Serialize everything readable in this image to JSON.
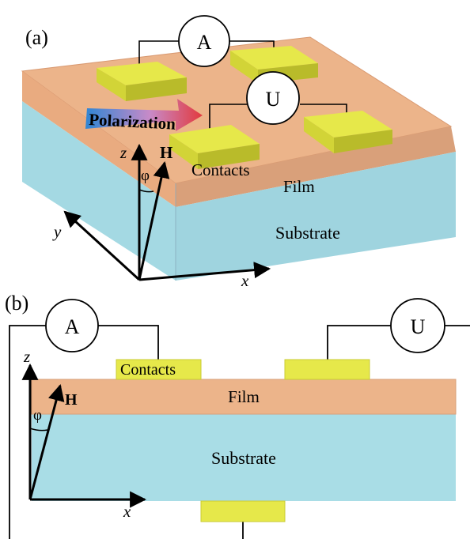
{
  "panel_a": {
    "label": "(a)",
    "ammeter": "A",
    "voltmeter": "U",
    "polarization": "Polarization",
    "contacts": "Contacts",
    "film": "Film",
    "substrate": "Substrate",
    "axis_z": "z",
    "axis_y": "y",
    "axis_x": "x",
    "field": "H",
    "angle": "φ"
  },
  "panel_b": {
    "label": "(b)",
    "ammeter": "A",
    "voltmeter": "U",
    "contacts": "Contacts",
    "film": "Film",
    "substrate": "Substrate",
    "axis_z": "z",
    "axis_x": "x",
    "field": "H",
    "angle": "φ"
  },
  "colors": {
    "film": "#ebb58d",
    "film_dark": "#d9a07a",
    "substrate": "#a9dde6",
    "substrate_dark": "#94cfd9",
    "contact": "#e6e84a",
    "contact_side": "#b9bb2a",
    "polarization_start": "#3b8fd6",
    "polarization_end": "#e0303a"
  }
}
